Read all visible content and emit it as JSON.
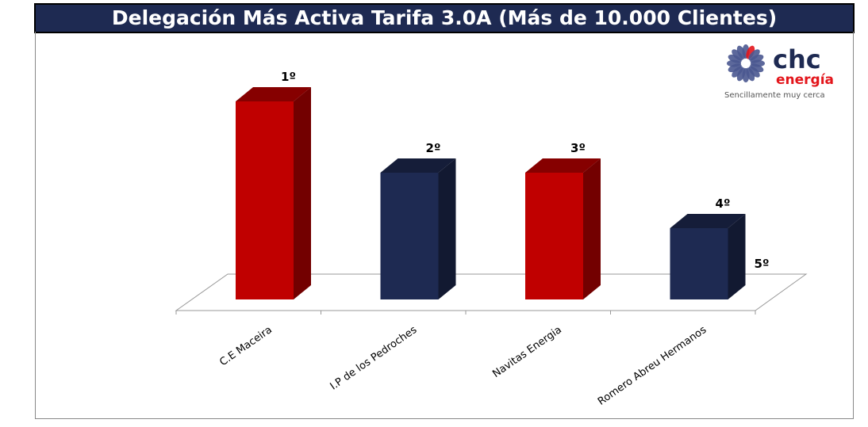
{
  "chart_data": {
    "type": "bar",
    "title": "Delegación Más Activa Tarifa 3.0A  (Más de 10.000 Clientes)",
    "categories": [
      "C.E Maceira",
      "I.P de los Pedroches",
      "Navitas Energia",
      "Romero Abreu Hermanos",
      ""
    ],
    "values": [
      100,
      64,
      64,
      36,
      0
    ],
    "rank_labels": [
      "1º",
      "2º",
      "3º",
      "4º",
      "5º"
    ],
    "colors": [
      "#c00000",
      "#1e2a52",
      "#c00000",
      "#1e2a52",
      "#1e2a52"
    ],
    "ylim": [
      0,
      100
    ],
    "xlabel": "",
    "ylabel": "",
    "grid": false
  },
  "logo": {
    "brand": "chc",
    "sub": "energía",
    "tagline": "Sencillamente muy cerca"
  }
}
